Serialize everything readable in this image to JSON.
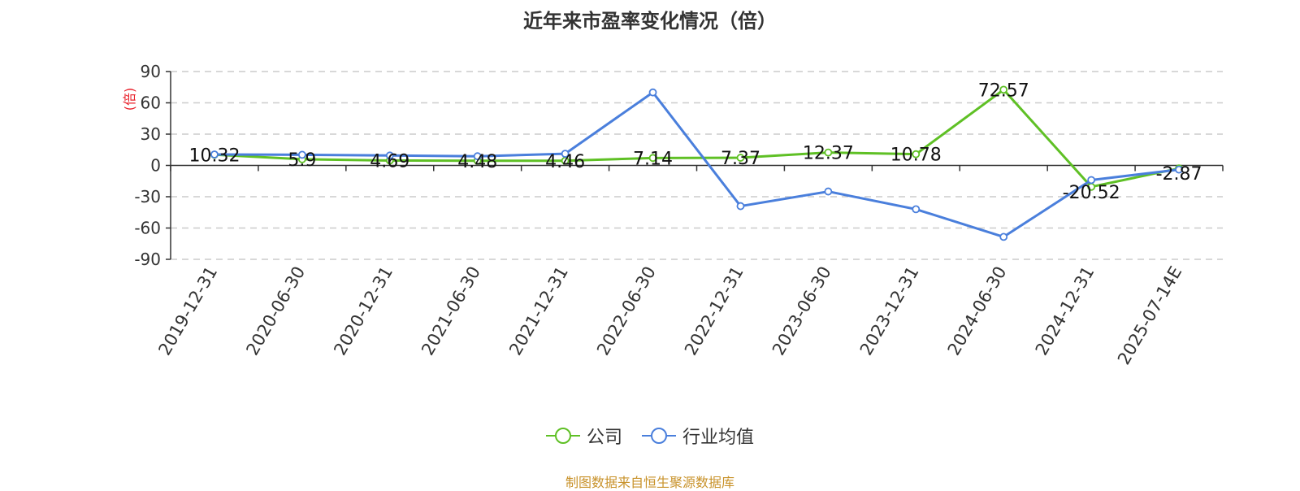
{
  "title": "近年来市盈率变化情况（倍）",
  "source": "制图数据来自恒生聚源数据库",
  "chart_data": {
    "type": "line",
    "title": "近年来市盈率变化情况（倍）",
    "ylabel": "(倍)",
    "xlabel": "",
    "ylim": [
      -90,
      90
    ],
    "yticks": [
      90,
      60,
      30,
      0,
      -30,
      -60,
      -90
    ],
    "grid": true,
    "legend_position": "bottom",
    "categories": [
      "2019-12-31",
      "2020-06-30",
      "2020-12-31",
      "2021-06-30",
      "2021-12-31",
      "2022-06-30",
      "2022-12-31",
      "2023-06-30",
      "2023-12-31",
      "2024-06-30",
      "2024-12-31",
      "2025-07-14E"
    ],
    "series": [
      {
        "name": "公司",
        "color": "#5fc025",
        "values": [
          10.32,
          5.9,
          4.69,
          4.48,
          4.46,
          7.14,
          7.37,
          12.37,
          10.78,
          72.57,
          -20.52,
          -2.87
        ],
        "labels": [
          "10.32",
          "5.9",
          "4.69",
          "4.48",
          "4.46",
          "7.14",
          "7.37",
          "12.37",
          "10.78",
          "72.57",
          "-20.52",
          "-2.87"
        ]
      },
      {
        "name": "行业均值",
        "color": "#4a7fdc",
        "values": [
          10.5,
          10.2,
          9.5,
          8.8,
          11.2,
          70.0,
          -39.0,
          -25.0,
          -42.0,
          -68.5,
          -14.0,
          -4.0
        ]
      }
    ]
  }
}
